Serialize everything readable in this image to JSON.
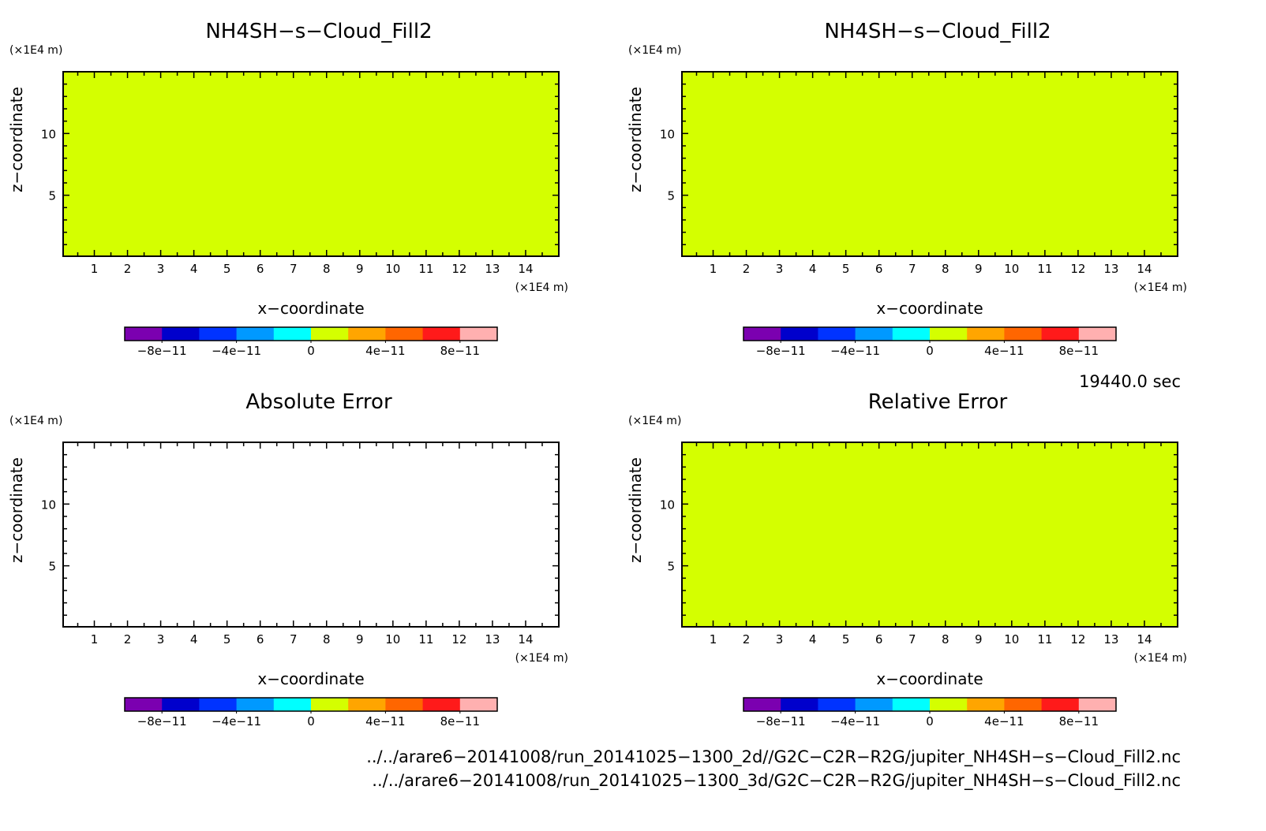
{
  "panels": [
    {
      "id": "p1",
      "title": "NH4SH−s−Cloud_Fill2",
      "filled": true,
      "xlabel": "x−coordinate",
      "ylabel": "z−coordinate",
      "xunit": "(×1E4 m)",
      "yunit": "(×1E4 m)"
    },
    {
      "id": "p2",
      "title": "NH4SH−s−Cloud_Fill2",
      "filled": true,
      "xlabel": "x−coordinate",
      "ylabel": "z−coordinate",
      "xunit": "(×1E4 m)",
      "yunit": "(×1E4 m)"
    },
    {
      "id": "p3",
      "title": "Absolute Error",
      "filled": false,
      "xlabel": "x−coordinate",
      "ylabel": "z−coordinate",
      "xunit": "(×1E4 m)",
      "yunit": "(×1E4 m)"
    },
    {
      "id": "p4",
      "title": "Relative Error",
      "filled": true,
      "xlabel": "x−coordinate",
      "ylabel": "z−coordinate",
      "xunit": "(×1E4 m)",
      "yunit": "(×1E4 m)"
    }
  ],
  "time_label": "19440.0 sec",
  "file_paths": [
    "../../arare6−20141008/run_20141025−1300_2d//G2C−C2R−R2G/jupiter_NH4SH−s−Cloud_Fill2.nc",
    "../../arare6−20141008/run_20141025−1300_3d/G2C−C2R−R2G/jupiter_NH4SH−s−Cloud_Fill2.nc"
  ],
  "chart_data": {
    "type": "heatmap",
    "fill_color": "#d4ff00",
    "xlim": [
      0.06,
      15.0
    ],
    "ylim": [
      0.06,
      15.0
    ],
    "xticks": [
      1,
      2,
      3,
      4,
      5,
      6,
      7,
      8,
      9,
      10,
      11,
      12,
      13,
      14
    ],
    "yticks": [
      5,
      10
    ],
    "colorbar": {
      "colors": [
        "#7b00b0",
        "#0000cc",
        "#0033ff",
        "#0099ff",
        "#00ffff",
        "#d4ff00",
        "#ffa500",
        "#ff6600",
        "#ff1a1a",
        "#ffb0b0"
      ],
      "labels": [
        "−8e−11",
        "−4e−11",
        "0",
        "4e−11",
        "8e−11"
      ]
    }
  }
}
